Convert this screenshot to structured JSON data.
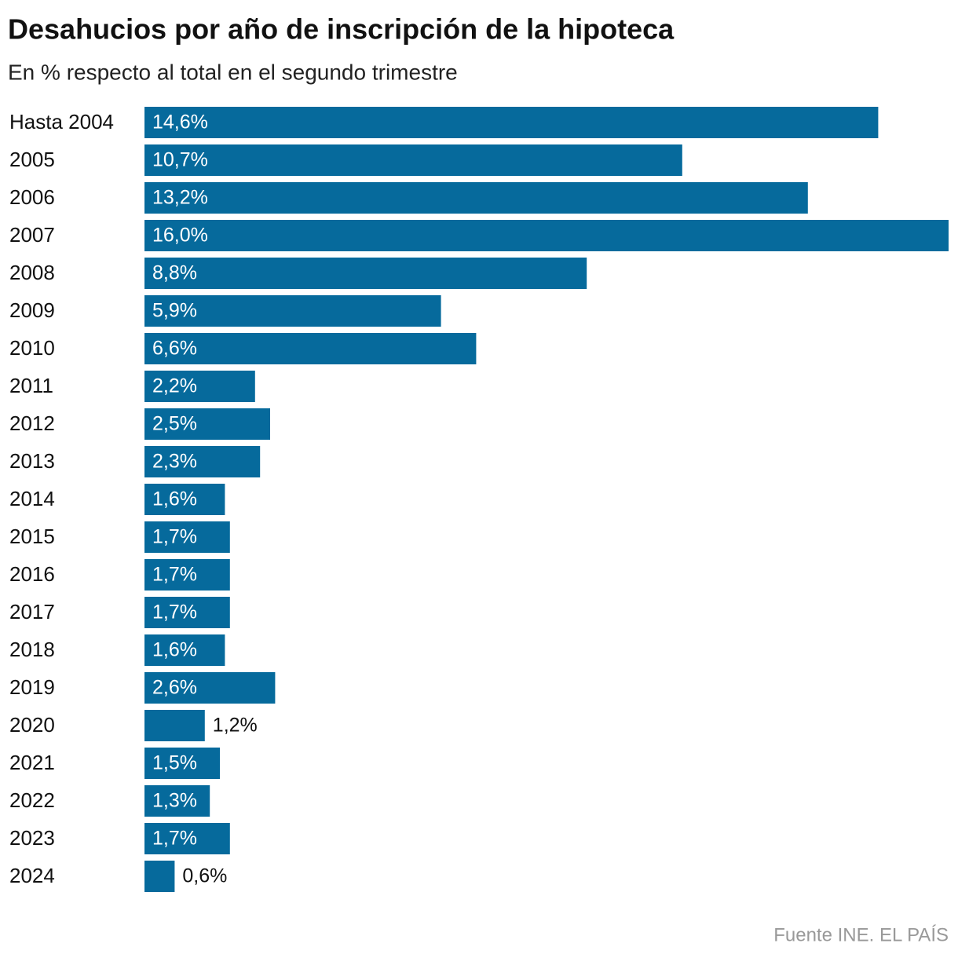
{
  "chart_data": {
    "type": "bar",
    "orientation": "horizontal",
    "title": "Desahucios por año de inscripción de la hipoteca",
    "subtitle": "En % respecto al total en el segundo trimestre",
    "source": "Fuente INE. EL PAÍS",
    "color": "#066a9c",
    "categories": [
      "Hasta 2004",
      "2005",
      "2006",
      "2007",
      "2008",
      "2009",
      "2010",
      "2011",
      "2012",
      "2013",
      "2014",
      "2015",
      "2016",
      "2017",
      "2018",
      "2019",
      "2020",
      "2021",
      "2022",
      "2023",
      "2024"
    ],
    "values": [
      14.6,
      10.7,
      13.2,
      16.0,
      8.8,
      5.9,
      6.6,
      2.2,
      2.5,
      2.3,
      1.6,
      1.7,
      1.7,
      1.7,
      1.6,
      2.6,
      1.2,
      1.5,
      1.3,
      1.7,
      0.6
    ],
    "value_labels": [
      "14,6%",
      "10,7%",
      "13,2%",
      "16,0%",
      "8,8%",
      "5,9%",
      "6,6%",
      "2,2%",
      "2,5%",
      "2,3%",
      "1,6%",
      "1,7%",
      "1,7%",
      "1,7%",
      "1,6%",
      "2,6%",
      "1,2%",
      "1,5%",
      "1,3%",
      "1,7%",
      "0,6%"
    ]
  }
}
